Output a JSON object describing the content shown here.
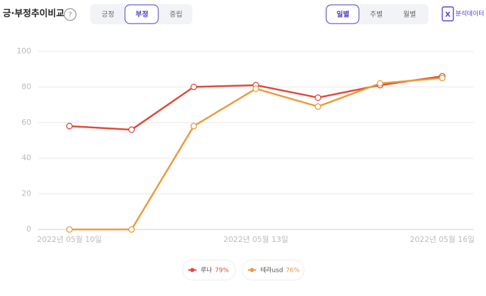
{
  "header": {
    "title": "긍·부정추이비교",
    "sentiment_tabs": [
      "긍정",
      "부정",
      "중립"
    ],
    "sentiment_active": 1,
    "period_tabs": [
      "일별",
      "주별",
      "월별"
    ],
    "period_active": 0,
    "export": "분석데이터"
  },
  "chart_data": {
    "type": "line",
    "categories": [
      "2022년 05월 10일",
      null,
      null,
      "2022년 05월 13일",
      null,
      null,
      "2022년 05월 16일"
    ],
    "series": [
      {
        "name": "루나",
        "color": "#e0493a",
        "values": [
          58,
          56,
          80,
          81,
          74,
          81,
          86
        ],
        "share": 79,
        "share_label": "79%"
      },
      {
        "name": "테라usd",
        "color": "#eb9a3b",
        "values": [
          0,
          0,
          58,
          79,
          69,
          82,
          85
        ],
        "share": 76,
        "share_label": "76%"
      }
    ],
    "ylim": [
      0,
      100
    ],
    "yticks": [
      0,
      20,
      40,
      60,
      80,
      100
    ],
    "grid": true
  }
}
